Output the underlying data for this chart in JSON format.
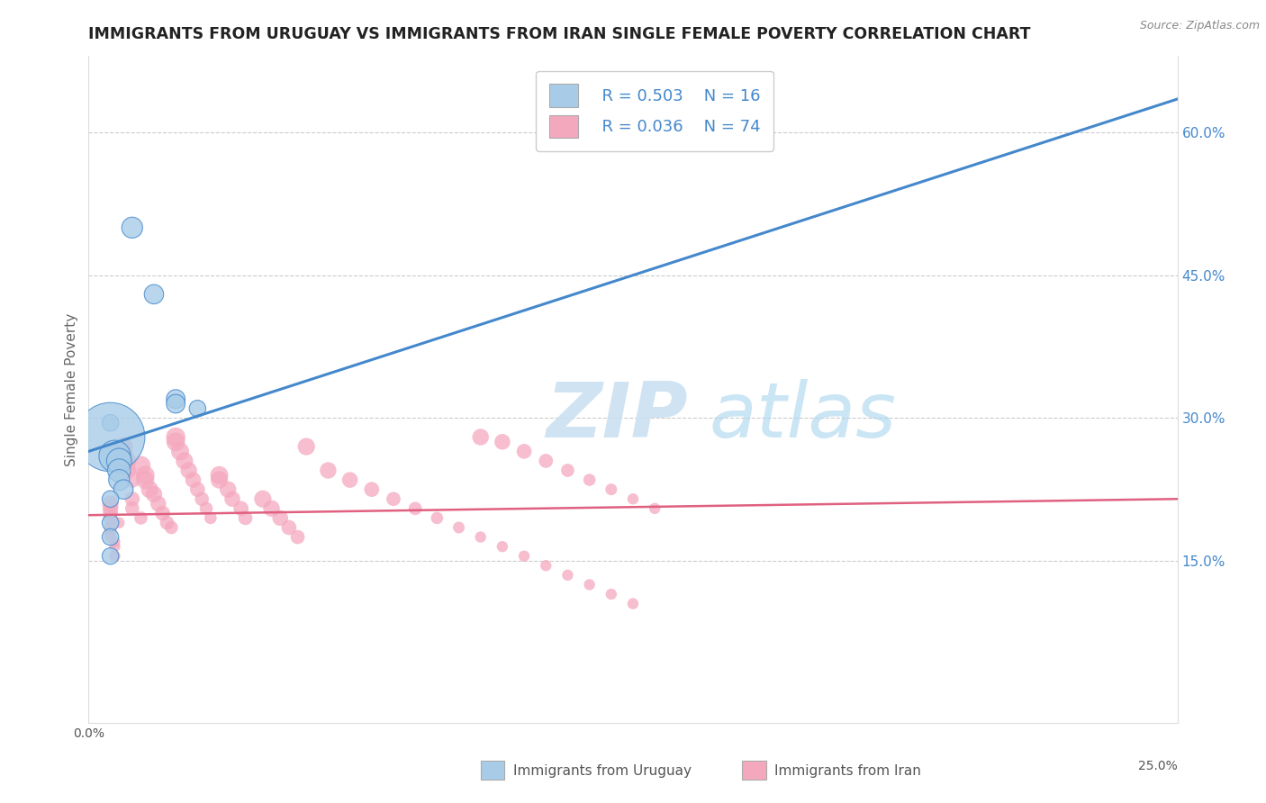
{
  "title": "IMMIGRANTS FROM URUGUAY VS IMMIGRANTS FROM IRAN SINGLE FEMALE POVERTY CORRELATION CHART",
  "source": "Source: ZipAtlas.com",
  "ylabel": "Single Female Poverty",
  "right_yticks": [
    "15.0%",
    "30.0%",
    "45.0%",
    "60.0%"
  ],
  "right_ytick_vals": [
    0.15,
    0.3,
    0.45,
    0.6
  ],
  "watermark_zip": "ZIP",
  "watermark_atlas": "atlas",
  "legend_r1": "R = 0.503",
  "legend_n1": "N = 16",
  "legend_r2": "R = 0.036",
  "legend_n2": "N = 74",
  "legend_label1": "Immigrants from Uruguay",
  "legend_label2": "Immigrants from Iran",
  "color_uruguay": "#a8cce8",
  "color_iran": "#f4a8be",
  "color_line_uruguay": "#4488cc",
  "color_line_iran": "#e06080",
  "color_text_blue": "#4488cc",
  "xlim": [
    0.0,
    0.25
  ],
  "ylim": [
    -0.02,
    0.68
  ],
  "uru_line_x0": 0.0,
  "uru_line_y0": 0.265,
  "uru_line_x1": 0.25,
  "uru_line_y1": 0.635,
  "iran_line_x0": 0.0,
  "iran_line_y0": 0.198,
  "iran_line_x1": 0.25,
  "iran_line_y1": 0.215,
  "uruguay_points": [
    [
      0.01,
      0.5,
      35
    ],
    [
      0.015,
      0.43,
      30
    ],
    [
      0.02,
      0.32,
      28
    ],
    [
      0.02,
      0.315,
      28
    ],
    [
      0.025,
      0.31,
      22
    ],
    [
      0.005,
      0.295,
      22
    ],
    [
      0.005,
      0.28,
      380
    ],
    [
      0.006,
      0.26,
      80
    ],
    [
      0.007,
      0.255,
      50
    ],
    [
      0.007,
      0.245,
      42
    ],
    [
      0.007,
      0.235,
      35
    ],
    [
      0.008,
      0.225,
      30
    ],
    [
      0.005,
      0.215,
      22
    ],
    [
      0.005,
      0.19,
      22
    ],
    [
      0.005,
      0.175,
      22
    ],
    [
      0.005,
      0.155,
      22
    ]
  ],
  "iran_points": [
    [
      0.005,
      0.21,
      22
    ],
    [
      0.005,
      0.205,
      20
    ],
    [
      0.005,
      0.2,
      18
    ],
    [
      0.005,
      0.195,
      16
    ],
    [
      0.005,
      0.185,
      14
    ],
    [
      0.005,
      0.18,
      12
    ],
    [
      0.005,
      0.175,
      11
    ],
    [
      0.006,
      0.17,
      10
    ],
    [
      0.006,
      0.165,
      10
    ],
    [
      0.006,
      0.155,
      10
    ],
    [
      0.007,
      0.19,
      10
    ],
    [
      0.008,
      0.27,
      28
    ],
    [
      0.008,
      0.265,
      26
    ],
    [
      0.009,
      0.255,
      24
    ],
    [
      0.009,
      0.245,
      22
    ],
    [
      0.01,
      0.235,
      20
    ],
    [
      0.01,
      0.215,
      18
    ],
    [
      0.01,
      0.205,
      16
    ],
    [
      0.012,
      0.195,
      14
    ],
    [
      0.012,
      0.25,
      30
    ],
    [
      0.013,
      0.24,
      28
    ],
    [
      0.013,
      0.235,
      26
    ],
    [
      0.014,
      0.225,
      24
    ],
    [
      0.015,
      0.22,
      22
    ],
    [
      0.016,
      0.21,
      20
    ],
    [
      0.017,
      0.2,
      18
    ],
    [
      0.018,
      0.19,
      16
    ],
    [
      0.019,
      0.185,
      14
    ],
    [
      0.02,
      0.28,
      30
    ],
    [
      0.02,
      0.275,
      28
    ],
    [
      0.021,
      0.265,
      26
    ],
    [
      0.022,
      0.255,
      24
    ],
    [
      0.023,
      0.245,
      22
    ],
    [
      0.024,
      0.235,
      20
    ],
    [
      0.025,
      0.225,
      18
    ],
    [
      0.026,
      0.215,
      16
    ],
    [
      0.027,
      0.205,
      14
    ],
    [
      0.028,
      0.195,
      12
    ],
    [
      0.03,
      0.24,
      26
    ],
    [
      0.03,
      0.235,
      24
    ],
    [
      0.032,
      0.225,
      22
    ],
    [
      0.033,
      0.215,
      20
    ],
    [
      0.035,
      0.205,
      18
    ],
    [
      0.036,
      0.195,
      16
    ],
    [
      0.04,
      0.215,
      24
    ],
    [
      0.042,
      0.205,
      22
    ],
    [
      0.044,
      0.195,
      20
    ],
    [
      0.046,
      0.185,
      18
    ],
    [
      0.048,
      0.175,
      16
    ],
    [
      0.05,
      0.27,
      24
    ],
    [
      0.055,
      0.245,
      22
    ],
    [
      0.06,
      0.235,
      20
    ],
    [
      0.065,
      0.225,
      18
    ],
    [
      0.07,
      0.215,
      16
    ],
    [
      0.075,
      0.205,
      14
    ],
    [
      0.08,
      0.195,
      12
    ],
    [
      0.085,
      0.185,
      11
    ],
    [
      0.09,
      0.175,
      10
    ],
    [
      0.095,
      0.165,
      10
    ],
    [
      0.1,
      0.155,
      10
    ],
    [
      0.105,
      0.145,
      10
    ],
    [
      0.11,
      0.135,
      10
    ],
    [
      0.115,
      0.125,
      10
    ],
    [
      0.12,
      0.115,
      10
    ],
    [
      0.125,
      0.105,
      10
    ],
    [
      0.09,
      0.28,
      22
    ],
    [
      0.095,
      0.275,
      20
    ],
    [
      0.1,
      0.265,
      18
    ],
    [
      0.105,
      0.255,
      16
    ],
    [
      0.11,
      0.245,
      14
    ],
    [
      0.115,
      0.235,
      12
    ],
    [
      0.12,
      0.225,
      11
    ],
    [
      0.125,
      0.215,
      10
    ],
    [
      0.13,
      0.205,
      10
    ]
  ]
}
